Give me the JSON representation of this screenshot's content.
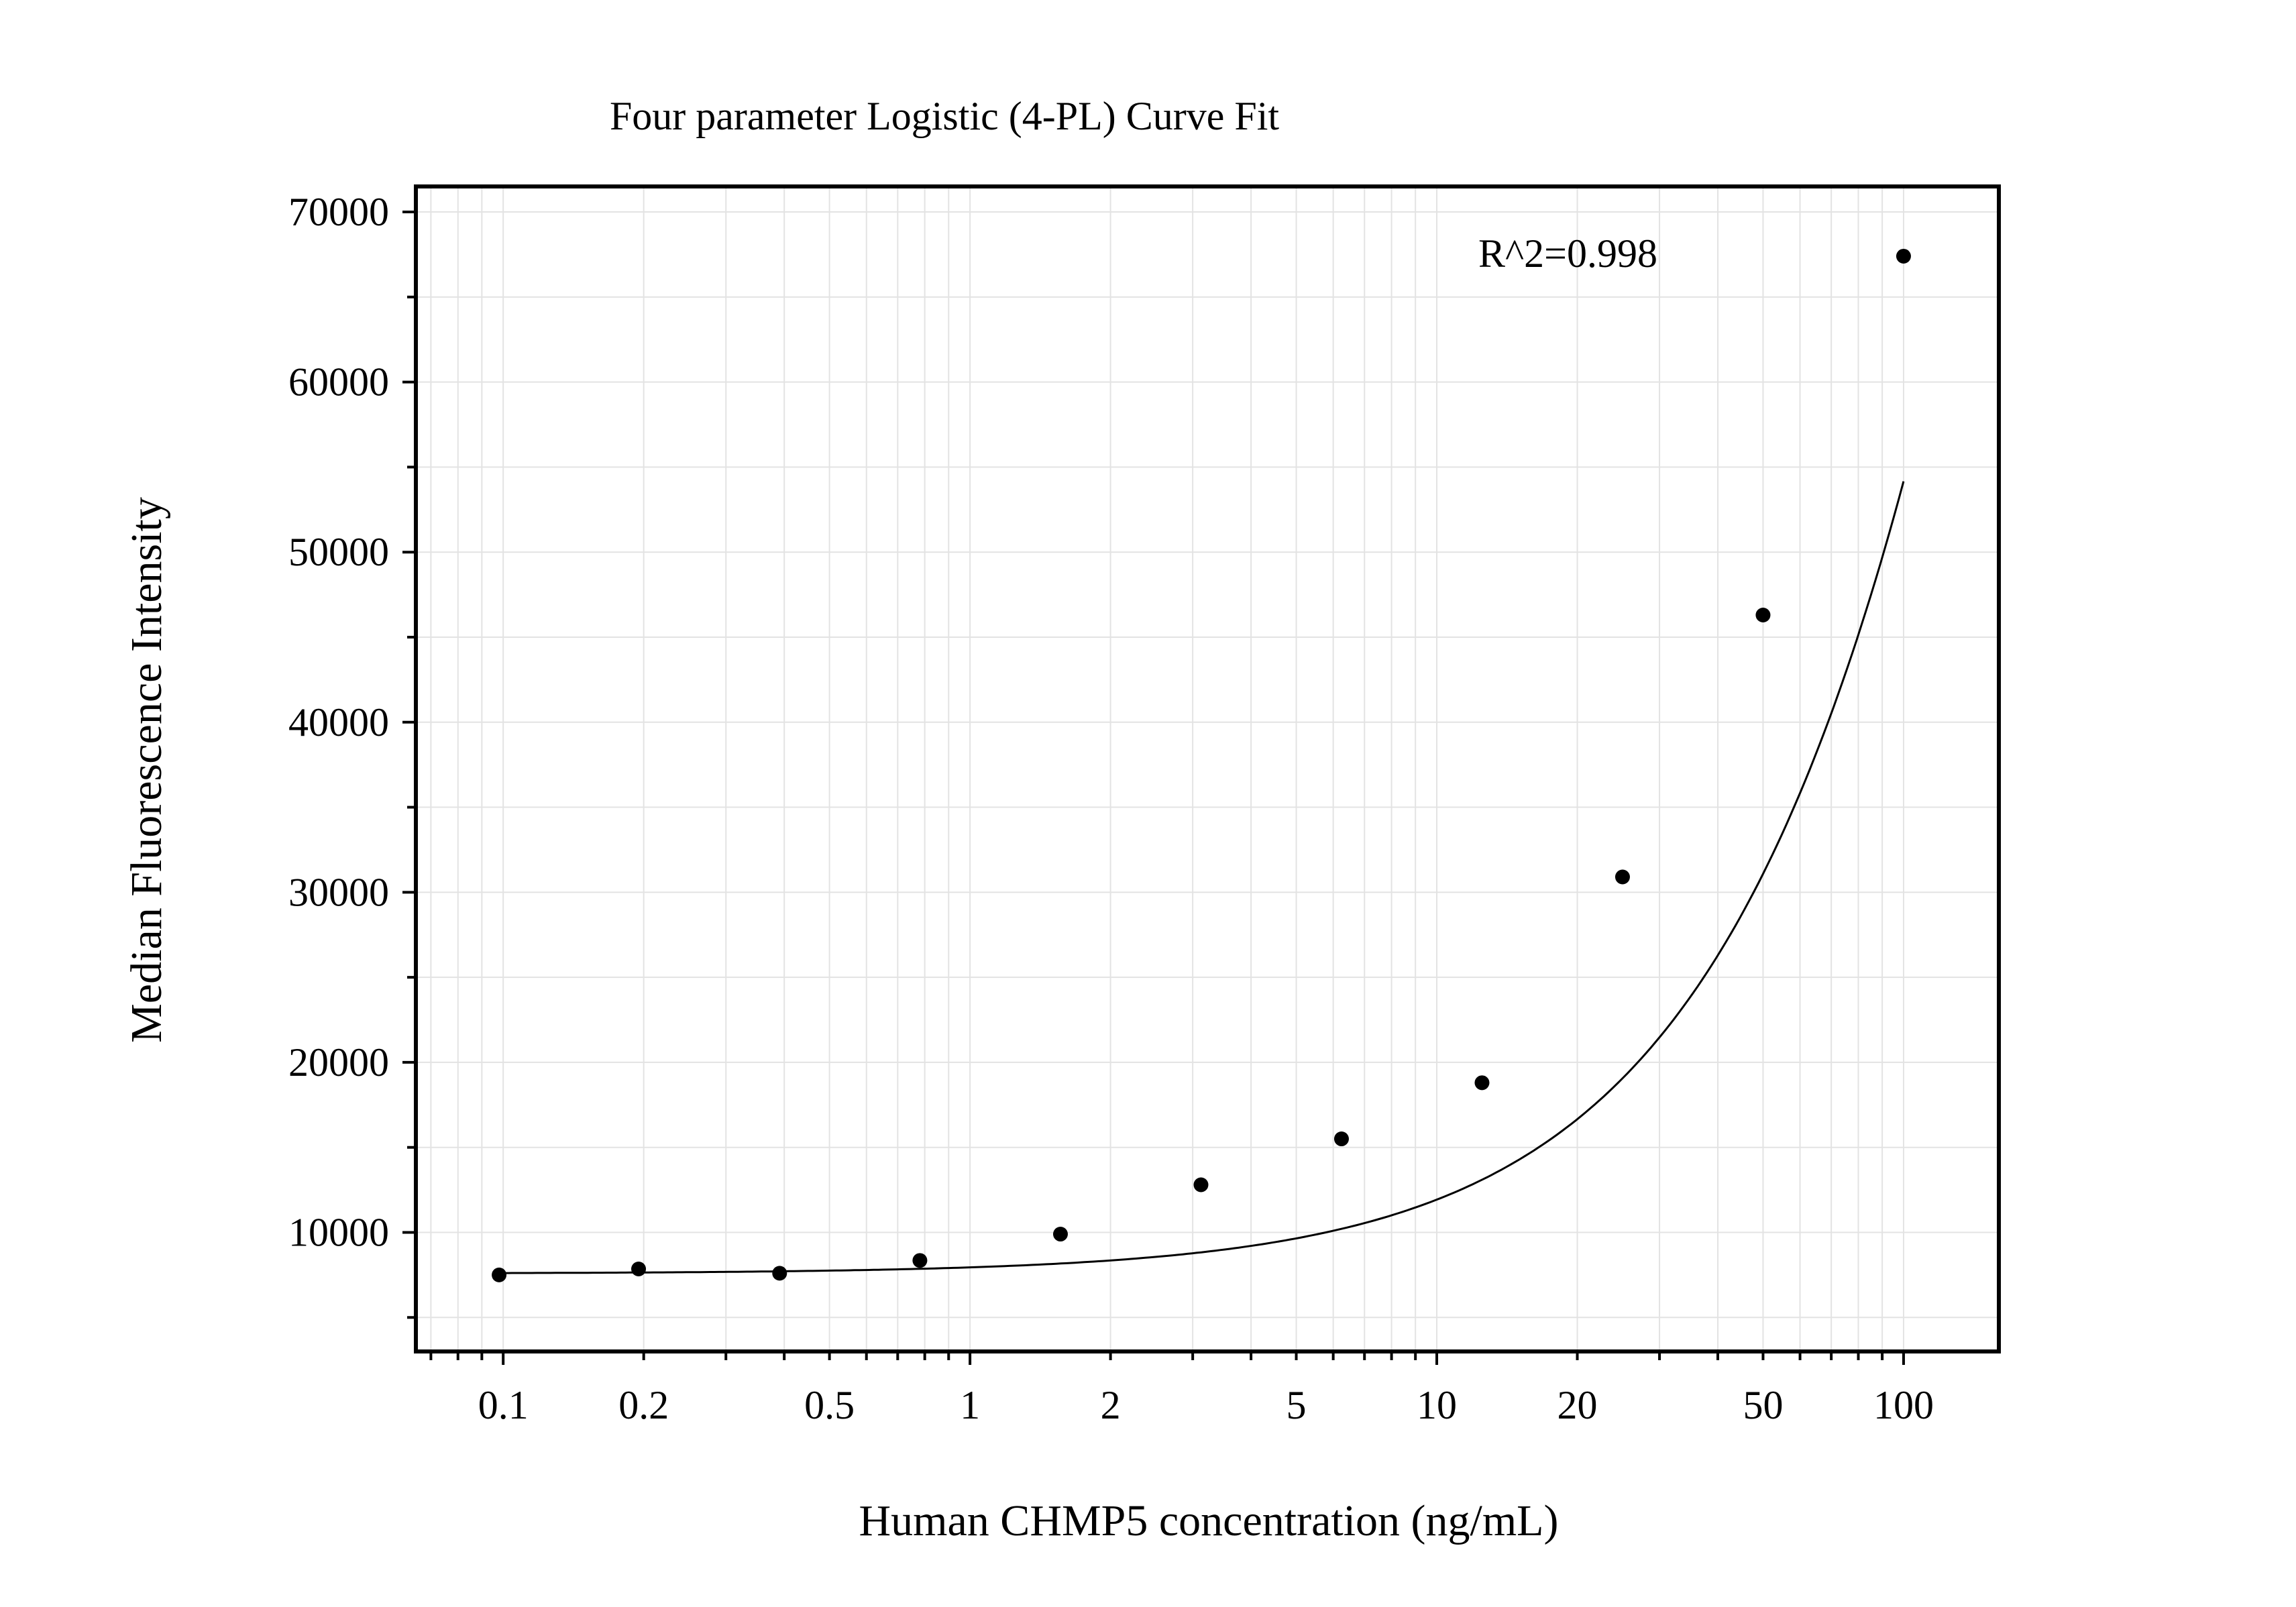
{
  "chart_data": {
    "type": "scatter",
    "title": "Four parameter Logistic (4-PL) Curve Fit",
    "xlabel": "Human CHMP5 concentration (ng/mL)",
    "ylabel": "Median Fluorescence Intensity",
    "x_scale": "log",
    "xlim": [
      0.065,
      160
    ],
    "ylim": [
      3000,
      71500
    ],
    "x_ticks": [
      0.1,
      0.2,
      0.5,
      1,
      2,
      5,
      10,
      20,
      50,
      100
    ],
    "x_tick_labels": [
      "0.1",
      "0.2",
      "0.5",
      "1",
      "2",
      "5",
      "10",
      "20",
      "50",
      "100"
    ],
    "y_ticks": [
      10000,
      20000,
      30000,
      40000,
      50000,
      60000,
      70000
    ],
    "y_tick_labels": [
      "10000",
      "20000",
      "30000",
      "40000",
      "50000",
      "60000",
      "70000"
    ],
    "grid": true,
    "annotation": "R^2=0.998",
    "series": [
      {
        "type": "scatter",
        "x": [
          0.098,
          0.195,
          0.391,
          0.781,
          1.5625,
          3.125,
          6.25,
          12.5,
          25,
          50,
          100
        ],
        "y": [
          7500,
          7850,
          7600,
          8350,
          9900,
          12800,
          15500,
          18800,
          30900,
          46300,
          67400
        ]
      },
      {
        "type": "line",
        "fit": "4PL"
      }
    ],
    "colors": {
      "marker": "#000000",
      "curve": "#000000",
      "grid": "#e3e3e3",
      "frame": "#000000"
    }
  }
}
